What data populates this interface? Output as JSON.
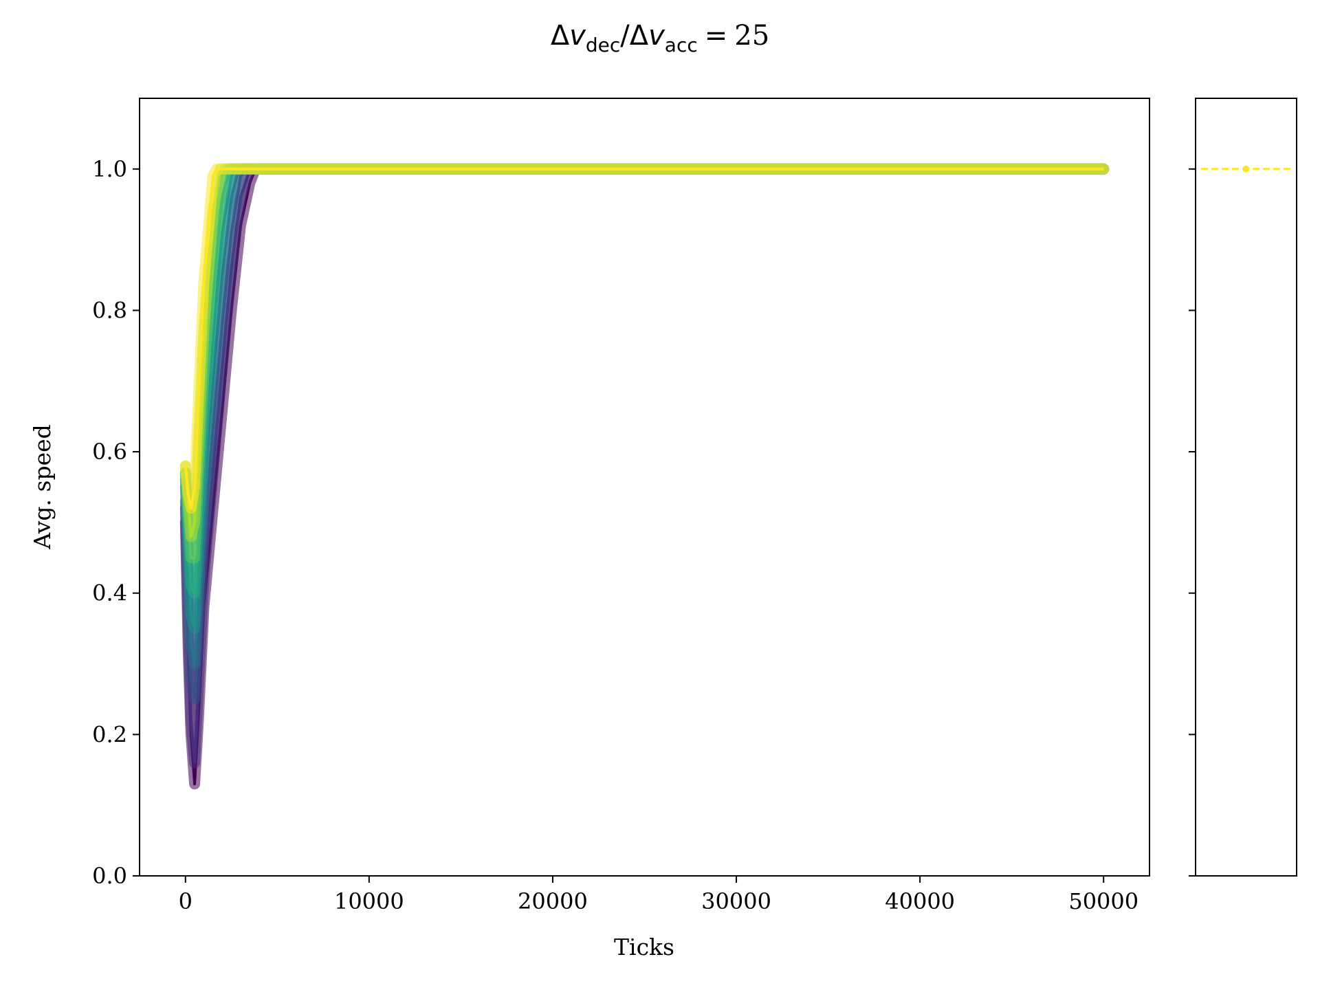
{
  "chart_data": [
    {
      "type": "line",
      "title_parts": {
        "delta_symbol": "Δ",
        "v_symbol": "v",
        "dec_sub": "dec",
        "acc_sub": "acc",
        "slash": "/",
        "equals": "=",
        "value": "25"
      },
      "xlabel": "Ticks",
      "ylabel": "Avg. speed",
      "xlim": [
        -2500,
        52500
      ],
      "ylim": [
        0.0,
        1.1
      ],
      "xticks": [
        0,
        10000,
        20000,
        30000,
        40000,
        50000
      ],
      "xtick_labels": [
        "0",
        "10000",
        "20000",
        "30000",
        "40000",
        "50000"
      ],
      "yticks": [
        0.0,
        0.2,
        0.4,
        0.6,
        0.8,
        1.0
      ],
      "ytick_labels": [
        "0.0",
        "0.2",
        "0.4",
        "0.6",
        "0.8",
        "1.0"
      ],
      "grid": false,
      "colormap": "viridis",
      "series": [
        {
          "color": "#440154",
          "x": [
            0,
            150,
            300,
            500,
            700,
            1000,
            1500,
            2000,
            2500,
            3000,
            3500,
            3800,
            50000
          ],
          "y": [
            0.5,
            0.32,
            0.2,
            0.13,
            0.22,
            0.38,
            0.52,
            0.66,
            0.8,
            0.92,
            0.98,
            1.0,
            1.0
          ]
        },
        {
          "color": "#472f7d",
          "x": [
            0,
            150,
            300,
            500,
            700,
            1000,
            1500,
            2000,
            2500,
            3000,
            3500,
            50000
          ],
          "y": [
            0.52,
            0.35,
            0.22,
            0.16,
            0.27,
            0.42,
            0.57,
            0.72,
            0.86,
            0.96,
            1.0,
            1.0
          ]
        },
        {
          "color": "#3b518b",
          "x": [
            0,
            150,
            300,
            500,
            700,
            1000,
            1500,
            2000,
            2500,
            3000,
            3300,
            50000
          ],
          "y": [
            0.53,
            0.4,
            0.28,
            0.25,
            0.35,
            0.48,
            0.63,
            0.78,
            0.91,
            0.99,
            1.0,
            1.0
          ]
        },
        {
          "color": "#2c718e",
          "x": [
            0,
            150,
            300,
            500,
            700,
            1000,
            1500,
            2000,
            2500,
            2900,
            50000
          ],
          "y": [
            0.55,
            0.43,
            0.33,
            0.3,
            0.4,
            0.54,
            0.7,
            0.85,
            0.96,
            1.0,
            1.0
          ]
        },
        {
          "color": "#21908d",
          "x": [
            0,
            150,
            300,
            500,
            700,
            1000,
            1500,
            2000,
            2500,
            2700,
            50000
          ],
          "y": [
            0.56,
            0.46,
            0.37,
            0.35,
            0.45,
            0.59,
            0.76,
            0.91,
            0.99,
            1.0,
            1.0
          ]
        },
        {
          "color": "#27ad81",
          "x": [
            0,
            150,
            300,
            500,
            700,
            1000,
            1500,
            2000,
            2400,
            50000
          ],
          "y": [
            0.57,
            0.49,
            0.41,
            0.4,
            0.5,
            0.65,
            0.82,
            0.96,
            1.0,
            1.0
          ]
        },
        {
          "color": "#5cc863",
          "x": [
            0,
            150,
            300,
            500,
            700,
            1000,
            1500,
            2000,
            2200,
            50000
          ],
          "y": [
            0.57,
            0.51,
            0.45,
            0.45,
            0.56,
            0.71,
            0.88,
            0.99,
            1.0,
            1.0
          ]
        },
        {
          "color": "#aadc32",
          "x": [
            0,
            150,
            300,
            500,
            700,
            1000,
            1500,
            1900,
            50000
          ],
          "y": [
            0.58,
            0.53,
            0.48,
            0.5,
            0.61,
            0.77,
            0.94,
            1.0,
            1.0
          ]
        },
        {
          "color": "#fde725",
          "x": [
            0,
            150,
            300,
            500,
            700,
            1000,
            1500,
            1700,
            50000
          ],
          "y": [
            0.58,
            0.54,
            0.52,
            0.55,
            0.67,
            0.84,
            0.99,
            1.0,
            1.0
          ]
        }
      ]
    },
    {
      "type": "line",
      "ylim": [
        0.0,
        1.1
      ],
      "grid": false,
      "series": [
        {
          "color": "#fde725",
          "linestyle": "dashed",
          "marker": "o",
          "x": [
            0,
            1,
            2
          ],
          "y": [
            1.0,
            1.0,
            1.0
          ]
        }
      ]
    }
  ]
}
